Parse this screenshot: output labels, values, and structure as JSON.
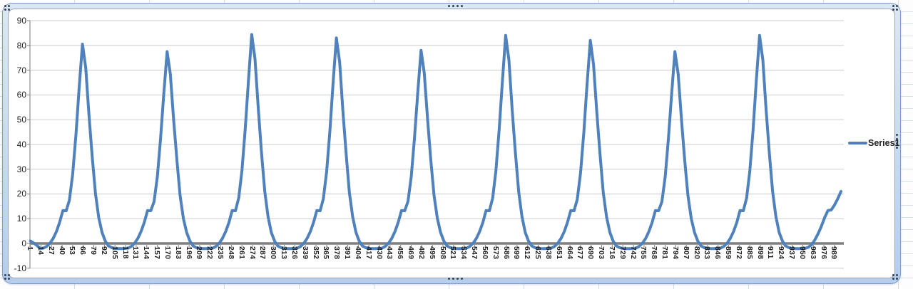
{
  "colors": {
    "series_line": "#4F81BD",
    "gridline": "#c9cdd2",
    "zero_axis": "#7f7f7f",
    "axis_line": "#8c8c8c",
    "tick": "#808080",
    "label_text": "#1f1f1f",
    "selection_band": "#b5ceec",
    "selection_border": "#7d9bcb",
    "handle_dot": "#33404f"
  },
  "chart_data": {
    "type": "line",
    "title": "",
    "grid": "horizontal",
    "legend": {
      "position": "right",
      "entries": [
        "Series1"
      ]
    },
    "y_axis": {
      "min": -10,
      "max": 90,
      "step": 10,
      "tick_labels": [
        "90",
        "80",
        "70",
        "60",
        "50",
        "40",
        "30",
        "20",
        "10",
        "0",
        "-10"
      ]
    },
    "x_axis": {
      "range": [
        1,
        1000
      ],
      "tick_start": 1,
      "tick_step": 13,
      "tick_labels": [
        "1",
        "14",
        "27",
        "40",
        "53",
        "66",
        "79",
        "92",
        "105",
        "118",
        "131",
        "144",
        "157",
        "170",
        "183",
        "196",
        "209",
        "222",
        "235",
        "248",
        "261",
        "274",
        "287",
        "300",
        "313",
        "326",
        "339",
        "352",
        "365",
        "378",
        "391",
        "404",
        "417",
        "430",
        "443",
        "456",
        "469",
        "482",
        "495",
        "508",
        "521",
        "534",
        "547",
        "560",
        "573",
        "586",
        "599",
        "612",
        "625",
        "638",
        "651",
        "664",
        "677",
        "690",
        "703",
        "716",
        "729",
        "742",
        "755",
        "768",
        "781",
        "794",
        "807",
        "820",
        "833",
        "846",
        "859",
        "872",
        "885",
        "898",
        "911",
        "924",
        "937",
        "950",
        "963",
        "976",
        "989"
      ]
    },
    "series": [
      {
        "name": "Series1",
        "color": "#4F81BD",
        "x_start": 1,
        "x_step": 4,
        "values": [
          1,
          0.2,
          -0.8,
          -2,
          -1.9,
          -1.2,
          0.1,
          2,
          4.8,
          8.5,
          13.3,
          13.2,
          17.5,
          28,
          44,
          63,
          80.5,
          71,
          52,
          35,
          20,
          10.5,
          4.5,
          1,
          -1,
          -1.7,
          -2,
          -2.1,
          -2.1,
          -2,
          -1.9,
          -1.2,
          0.1,
          2,
          4.8,
          8.5,
          13.3,
          13.2,
          16.9,
          27,
          42.4,
          60.7,
          77.5,
          68.4,
          50.1,
          33.7,
          19.3,
          10.1,
          4.5,
          1,
          -1,
          -1.7,
          -2,
          -2.1,
          -2.1,
          -2,
          -1.9,
          -1.2,
          0.1,
          2,
          4.8,
          8.5,
          13.3,
          13.2,
          18.4,
          29.4,
          46.2,
          66.1,
          84.4,
          74.5,
          54.5,
          36.7,
          21,
          11,
          4.5,
          1,
          -1,
          -1.7,
          -2,
          -2.1,
          -2.1,
          -2,
          -1.9,
          -1.2,
          0.1,
          2,
          4.8,
          8.5,
          13.3,
          13.2,
          18,
          28.9,
          45.4,
          64.9,
          83,
          73.2,
          53.6,
          36.1,
          20.6,
          10.8,
          4.5,
          1,
          -1,
          -1.7,
          -2,
          -2.1,
          -2.1,
          -2,
          -1.9,
          -1.2,
          0.1,
          2,
          4.8,
          8.5,
          13.3,
          13.2,
          17,
          27.1,
          42.6,
          61,
          78,
          68.8,
          50.4,
          33.9,
          19.4,
          10.2,
          4.5,
          1,
          -1,
          -1.7,
          -2,
          -2.1,
          -2.1,
          -2,
          -1.9,
          -1.2,
          0.1,
          2,
          4.8,
          8.5,
          13.3,
          13.2,
          18.3,
          29.2,
          45.9,
          65.7,
          84,
          74.1,
          54.2,
          36.5,
          20.9,
          11,
          4.5,
          1,
          -1,
          -1.7,
          -2,
          -2.1,
          -2.1,
          -2,
          -1.9,
          -1.2,
          0.1,
          2,
          4.8,
          8.5,
          13.3,
          13.2,
          17.8,
          28.5,
          44.8,
          64.2,
          82,
          72.3,
          53,
          35.7,
          20.4,
          10.7,
          4.5,
          1,
          -1,
          -1.7,
          -2,
          -2.1,
          -2.1,
          -2,
          -1.9,
          -1.2,
          0.1,
          2,
          4.8,
          8.5,
          13.3,
          13.2,
          16.9,
          27,
          42.4,
          60.7,
          77.5,
          68.4,
          50.1,
          33.7,
          19.3,
          10.1,
          4.5,
          1,
          -1,
          -1.7,
          -2,
          -2.1,
          -2.1,
          -2,
          -1.9,
          -1.2,
          0.1,
          2,
          4.8,
          8.5,
          13.3,
          13.2,
          18.3,
          29.2,
          45.9,
          65.7,
          84,
          74.1,
          54.2,
          36.5,
          20.9,
          11,
          4.5,
          1,
          -1,
          -1.7,
          -2,
          -2.1,
          -2.1,
          -2,
          -2,
          -1.5,
          -0.5,
          1.5,
          4,
          7,
          10.5,
          13.3,
          13.5,
          15.5,
          18,
          21
        ]
      }
    ]
  }
}
